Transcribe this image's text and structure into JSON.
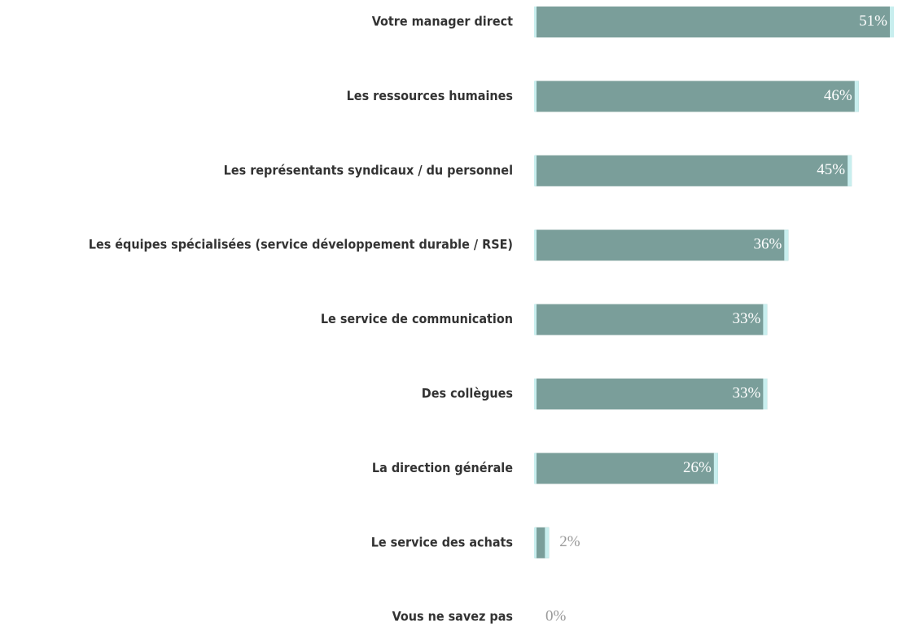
{
  "chart_data": {
    "type": "bar",
    "orientation": "horizontal",
    "categories": [
      "Votre manager direct",
      "Les ressources humaines",
      "Les représentants syndicaux / du personnel",
      "Les équipes spécialisées (service développement durable / RSE)",
      "Le service de communication",
      "Des collègues",
      "La direction générale",
      "Le service des achats",
      "Vous ne savez pas"
    ],
    "values": [
      51,
      46,
      45,
      36,
      33,
      33,
      26,
      2,
      0
    ],
    "value_labels": [
      "51%",
      "46%",
      "45%",
      "36%",
      "33%",
      "33%",
      "26%",
      "2%",
      "0%"
    ],
    "color": "#7a9e9a"
  }
}
